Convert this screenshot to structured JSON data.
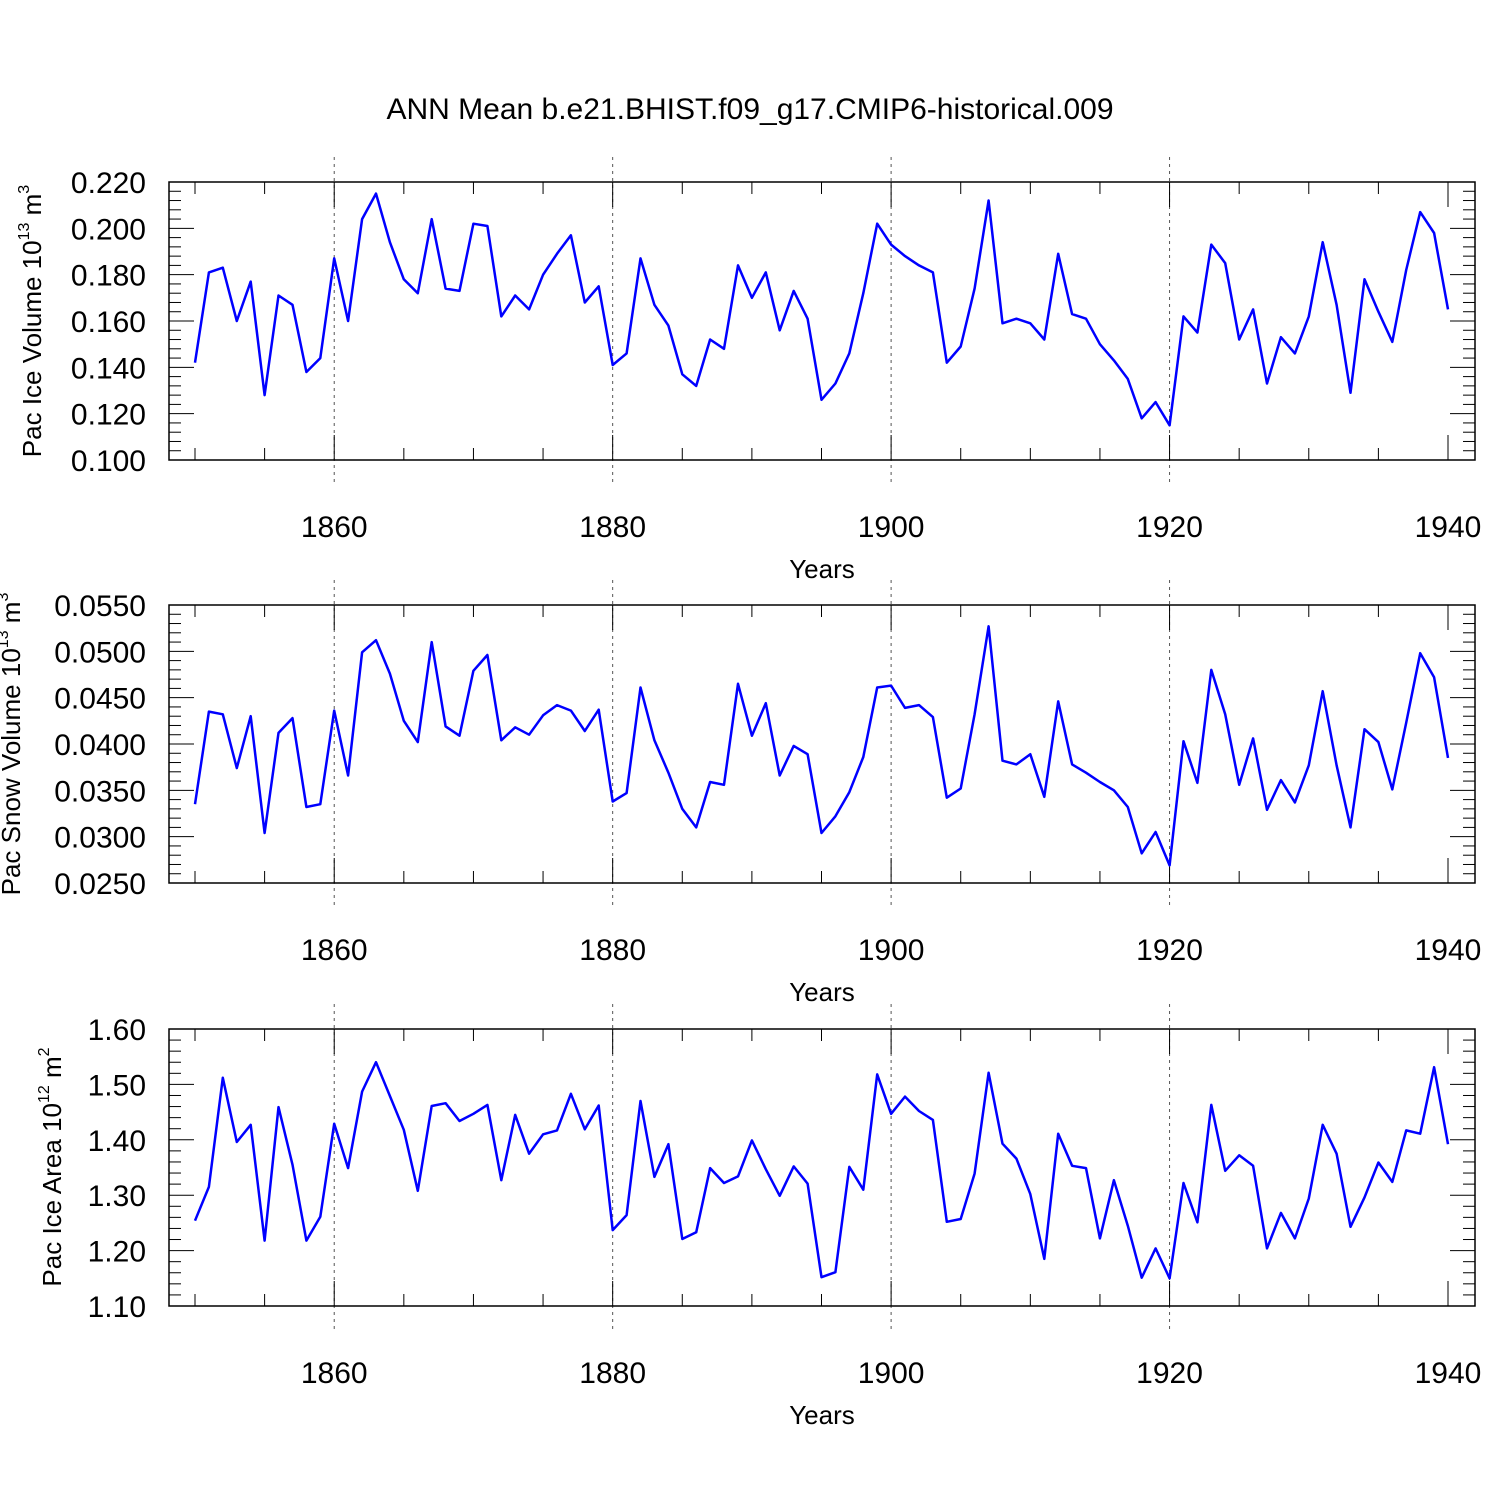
{
  "chart_data": [
    {
      "type": "line",
      "title": "ANN Mean b.e21.BHIST.f09_g17.CMIP6-historical.009",
      "ylabel": {
        "text": "Pac Ice Volume 10",
        "exp": "13",
        "unit": "m",
        "unit_exp": "3"
      },
      "xlabel": "Years",
      "xlim": [
        1850,
        1940
      ],
      "ylim": [
        0.1,
        0.22
      ],
      "yticks": [
        0.1,
        0.12,
        0.14,
        0.16,
        0.18,
        0.2,
        0.22
      ],
      "ytick_labels": [
        "0.100",
        "0.120",
        "0.140",
        "0.160",
        "0.180",
        "0.200",
        "0.220"
      ],
      "xticks": [
        1860,
        1880,
        1900,
        1920,
        1940
      ],
      "xtick_labels": [
        "1860",
        "1880",
        "1900",
        "1920",
        "1940"
      ],
      "grid_x": [
        1860,
        1880,
        1900,
        1920
      ],
      "color": "#0000ff",
      "x_start": 1850,
      "values": [
        0.142,
        0.181,
        0.183,
        0.16,
        0.177,
        0.128,
        0.171,
        0.167,
        0.138,
        0.144,
        0.187,
        0.16,
        0.204,
        0.215,
        0.194,
        0.178,
        0.172,
        0.204,
        0.174,
        0.173,
        0.202,
        0.201,
        0.162,
        0.171,
        0.165,
        0.18,
        0.189,
        0.197,
        0.168,
        0.175,
        0.141,
        0.146,
        0.187,
        0.167,
        0.158,
        0.137,
        0.132,
        0.152,
        0.148,
        0.184,
        0.17,
        0.181,
        0.156,
        0.173,
        0.161,
        0.126,
        0.133,
        0.146,
        0.172,
        0.202,
        0.193,
        0.188,
        0.184,
        0.181,
        0.142,
        0.149,
        0.174,
        0.212,
        0.159,
        0.161,
        0.159,
        0.152,
        0.189,
        0.163,
        0.161,
        0.15,
        0.143,
        0.135,
        0.118,
        0.125,
        0.115,
        0.162,
        0.155,
        0.193,
        0.185,
        0.152,
        0.165,
        0.133,
        0.153,
        0.146,
        0.162,
        0.194,
        0.167,
        0.129,
        0.178,
        0.164,
        0.151,
        0.182,
        0.207,
        0.198,
        0.165
      ]
    },
    {
      "type": "line",
      "ylabel": {
        "text": "Pac Snow Volume 10",
        "exp": "13",
        "unit": "m",
        "unit_exp": "3"
      },
      "xlabel": "Years",
      "xlim": [
        1850,
        1940
      ],
      "ylim": [
        0.025,
        0.055
      ],
      "yticks": [
        0.025,
        0.03,
        0.035,
        0.04,
        0.045,
        0.05,
        0.055
      ],
      "ytick_labels": [
        "0.0250",
        "0.0300",
        "0.0350",
        "0.0400",
        "0.0450",
        "0.0500",
        "0.0550"
      ],
      "xticks": [
        1860,
        1880,
        1900,
        1920,
        1940
      ],
      "xtick_labels": [
        "1860",
        "1880",
        "1900",
        "1920",
        "1940"
      ],
      "grid_x": [
        1860,
        1880,
        1900,
        1920
      ],
      "color": "#0000ff",
      "x_start": 1850,
      "values": [
        0.0335,
        0.0435,
        0.0432,
        0.0374,
        0.043,
        0.0304,
        0.0412,
        0.0428,
        0.0332,
        0.0335,
        0.0436,
        0.0366,
        0.0499,
        0.0512,
        0.0476,
        0.0425,
        0.0402,
        0.051,
        0.0419,
        0.0409,
        0.0479,
        0.0496,
        0.0404,
        0.0418,
        0.041,
        0.0431,
        0.0442,
        0.0436,
        0.0414,
        0.0437,
        0.0338,
        0.0347,
        0.0461,
        0.0404,
        0.0369,
        0.033,
        0.031,
        0.0359,
        0.0356,
        0.0465,
        0.0409,
        0.0444,
        0.0366,
        0.0398,
        0.0389,
        0.0304,
        0.0322,
        0.0348,
        0.0386,
        0.0461,
        0.0463,
        0.0439,
        0.0442,
        0.0429,
        0.0342,
        0.0352,
        0.0432,
        0.0527,
        0.0382,
        0.0378,
        0.0389,
        0.0343,
        0.0446,
        0.0378,
        0.0369,
        0.0359,
        0.035,
        0.0332,
        0.0282,
        0.0305,
        0.0269,
        0.0403,
        0.0358,
        0.048,
        0.0432,
        0.0356,
        0.0406,
        0.0329,
        0.0361,
        0.0337,
        0.0377,
        0.0457,
        0.0377,
        0.031,
        0.0416,
        0.0402,
        0.0351,
        0.0423,
        0.0498,
        0.0472,
        0.0385
      ]
    },
    {
      "type": "line",
      "ylabel": {
        "text": "Pac Ice Area 10",
        "exp": "12",
        "unit": "m",
        "unit_exp": "2"
      },
      "xlabel": "Years",
      "xlim": [
        1850,
        1940
      ],
      "ylim": [
        1.1,
        1.6
      ],
      "yticks": [
        1.1,
        1.2,
        1.3,
        1.4,
        1.5,
        1.6
      ],
      "ytick_labels": [
        "1.10",
        "1.20",
        "1.30",
        "1.40",
        "1.50",
        "1.60"
      ],
      "xticks": [
        1860,
        1880,
        1900,
        1920,
        1940
      ],
      "xtick_labels": [
        "1860",
        "1880",
        "1900",
        "1920",
        "1940"
      ],
      "grid_x": [
        1860,
        1880,
        1900,
        1920
      ],
      "color": "#0000ff",
      "x_start": 1850,
      "values": [
        1.254,
        1.315,
        1.512,
        1.396,
        1.427,
        1.218,
        1.459,
        1.355,
        1.218,
        1.261,
        1.429,
        1.349,
        1.487,
        1.54,
        1.479,
        1.418,
        1.308,
        1.461,
        1.466,
        1.434,
        1.447,
        1.463,
        1.327,
        1.445,
        1.375,
        1.41,
        1.417,
        1.483,
        1.419,
        1.462,
        1.237,
        1.264,
        1.47,
        1.333,
        1.392,
        1.221,
        1.233,
        1.349,
        1.322,
        1.334,
        1.399,
        1.347,
        1.299,
        1.352,
        1.321,
        1.152,
        1.161,
        1.351,
        1.31,
        1.518,
        1.447,
        1.478,
        1.452,
        1.436,
        1.252,
        1.257,
        1.339,
        1.521,
        1.393,
        1.366,
        1.302,
        1.185,
        1.411,
        1.353,
        1.349,
        1.222,
        1.327,
        1.245,
        1.151,
        1.204,
        1.15,
        1.322,
        1.251,
        1.463,
        1.344,
        1.372,
        1.353,
        1.204,
        1.268,
        1.222,
        1.294,
        1.427,
        1.375,
        1.243,
        1.296,
        1.359,
        1.324,
        1.417,
        1.411,
        1.531,
        1.392
      ]
    }
  ]
}
